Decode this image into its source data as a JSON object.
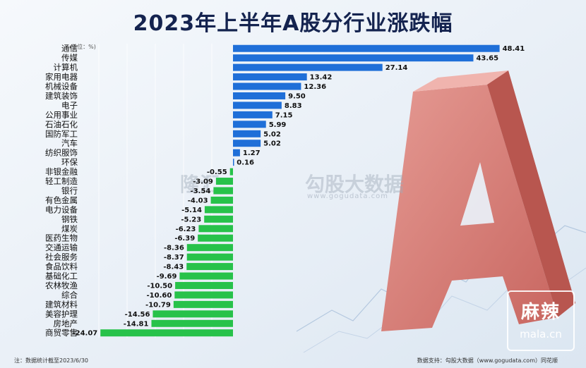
{
  "title": "2023年上半年A股分行业涨跌幅",
  "unit_note": "(单位：%)",
  "footer_note": "注：数据统计截至2023/6/30",
  "footer_source": "数据支持：勾股大数据（www.gogudata.com）同花顺",
  "watermark": {
    "logo_a": "隆汇",
    "logo_b": "勾股大数据",
    "url": "www.gogudata.com"
  },
  "corner_logo": {
    "big": "麻辣",
    "small": "mala.cn"
  },
  "colors": {
    "positive": "#1f6fd8",
    "negative": "#27c24a",
    "title": "#14234f"
  },
  "chart_data": {
    "type": "bar",
    "orientation": "horizontal",
    "categories": [
      "通信",
      "传媒",
      "计算机",
      "家用电器",
      "机械设备",
      "建筑装饰",
      "电子",
      "公用事业",
      "石油石化",
      "国防军工",
      "汽车",
      "纺织服饰",
      "环保",
      "非银金融",
      "轻工制造",
      "银行",
      "有色金属",
      "电力设备",
      "钢铁",
      "煤炭",
      "医药生物",
      "交通运输",
      "社会服务",
      "食品饮料",
      "基础化工",
      "农林牧渔",
      "综合",
      "建筑材料",
      "美容护理",
      "房地产",
      "商贸零售"
    ],
    "values": [
      48.41,
      43.65,
      27.14,
      13.42,
      12.36,
      9.5,
      8.83,
      7.15,
      5.99,
      5.02,
      5.02,
      1.27,
      0.16,
      -0.55,
      -3.09,
      -3.54,
      -4.03,
      -5.14,
      -5.23,
      -6.23,
      -6.39,
      -8.36,
      -8.37,
      -8.43,
      -9.69,
      -10.5,
      -10.6,
      -10.79,
      -14.56,
      -14.81,
      -24.07
    ],
    "value_labels": [
      "48.41",
      "43.65",
      "27.14",
      "13.42",
      "12.36",
      "9.50",
      "8.83",
      "7.15",
      "5.99",
      "5.02",
      "5.02",
      "1.27",
      "0.16",
      "-0.55",
      "-3.09",
      "-3.54",
      "-4.03",
      "-5.14",
      "-5.23",
      "-6.23",
      "-6.39",
      "-8.36",
      "-8.37",
      "-8.43",
      "-9.69",
      "-10.50",
      "-10.60",
      "-10.79",
      "-14.56",
      "-14.81",
      "-24.07"
    ],
    "xlim": [
      -26,
      50
    ],
    "grid": true,
    "legend": "none"
  }
}
